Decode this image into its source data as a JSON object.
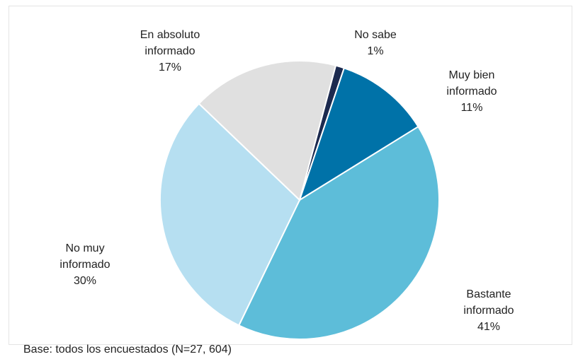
{
  "chart_data": {
    "type": "pie",
    "categories": [
      "No sabe",
      "Muy bien informado",
      "Bastante informado",
      "No muy informado",
      "En absoluto informado"
    ],
    "values": [
      1,
      11,
      41,
      30,
      17
    ],
    "value_labels": [
      "1%",
      "11%",
      "41%",
      "30%",
      "17%"
    ],
    "colors": [
      "#1c2a4f",
      "#0072a8",
      "#5dbdd9",
      "#b6dff1",
      "#e0e0e0"
    ],
    "note": "Base: todos los encuestados (N=27, 604)"
  }
}
